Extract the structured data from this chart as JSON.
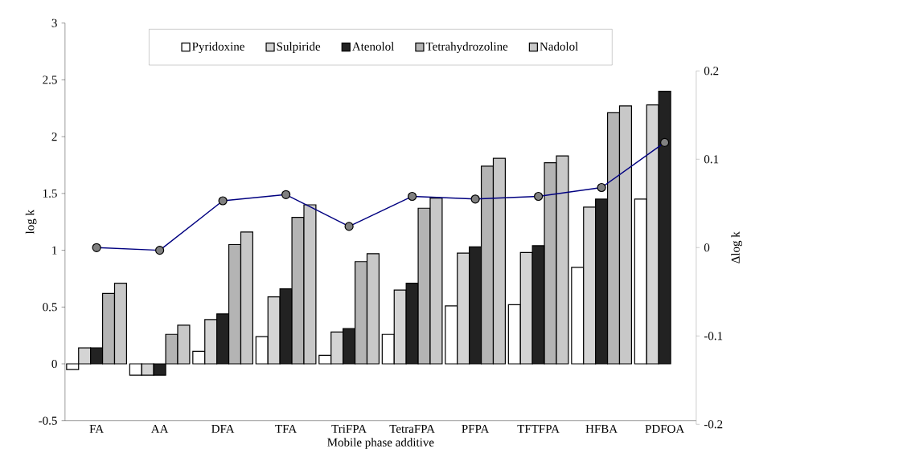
{
  "chart_data": {
    "type": "bar",
    "xlabel": "Mobile phase additive",
    "ylabel": "log k",
    "y2label": "Δlog k",
    "categories": [
      "FA",
      "AA",
      "DFA",
      "TFA",
      "TriFPA",
      "TetraFPA",
      "PFPA",
      "TFTFPA",
      "HFBA",
      "PDFOA"
    ],
    "series": [
      {
        "name": "Pyridoxine",
        "color": "#ffffff",
        "values": [
          -0.05,
          -0.1,
          0.11,
          0.24,
          0.075,
          0.26,
          0.51,
          0.52,
          0.85,
          1.45
        ]
      },
      {
        "name": "Sulpiride",
        "color": "#d4d4d4",
        "values": [
          0.14,
          -0.1,
          0.39,
          0.59,
          0.28,
          0.65,
          0.975,
          0.98,
          1.38,
          2.28
        ]
      },
      {
        "name": "Atenolol",
        "color": "#222222",
        "values": [
          0.14,
          -0.1,
          0.44,
          0.66,
          0.31,
          0.71,
          1.03,
          1.04,
          1.45,
          2.4
        ]
      },
      {
        "name": "Tetrahydrozoline",
        "color": "#b4b4b4",
        "values": [
          0.62,
          0.26,
          1.05,
          1.29,
          0.9,
          1.37,
          1.74,
          1.77,
          2.21,
          null
        ]
      },
      {
        "name": "Nadolol",
        "color": "#c8c8c8",
        "values": [
          0.71,
          0.34,
          1.16,
          1.4,
          0.97,
          1.46,
          1.81,
          1.83,
          2.27,
          null
        ]
      },
      {
        "type": "line",
        "axis": "y2",
        "color": "#000080",
        "marker": "circle",
        "values": [
          0,
          -0.003,
          0.053,
          0.06,
          0.024,
          0.058,
          0.055,
          0.058,
          0.068,
          0.119
        ]
      }
    ],
    "ylim": [
      -0.5,
      3
    ],
    "yticks": [
      -0.5,
      0,
      0.5,
      1,
      1.5,
      2,
      2.5,
      3
    ],
    "y2lim": [
      -0.2,
      0.2
    ],
    "y2ticks": [
      -0.2,
      -0.1,
      0,
      0.1,
      0.2
    ],
    "grid": false,
    "legend": "top"
  }
}
